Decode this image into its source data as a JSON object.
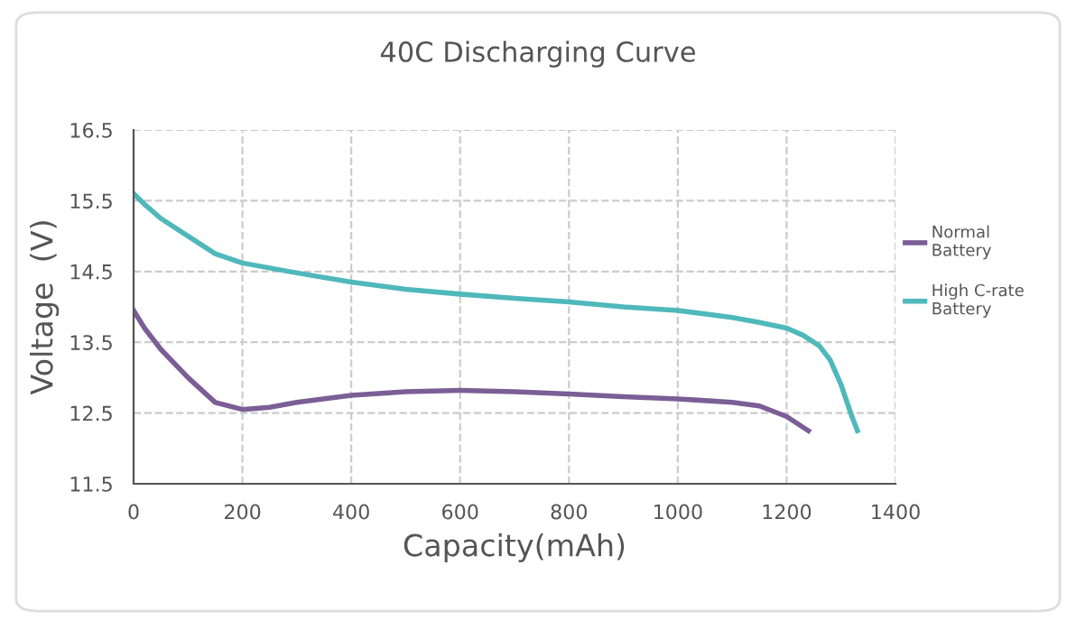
{
  "chart_data": {
    "type": "line",
    "title": "40C Discharging Curve",
    "xlabel": "Capacity(mAh)",
    "ylabel": "Voltage  (V)",
    "xlim": [
      0,
      1400
    ],
    "xticks": [
      0,
      200,
      400,
      600,
      800,
      1000,
      1200,
      1400
    ],
    "ylim": [
      11.5,
      16.5
    ],
    "yticks": [
      11.5,
      12.5,
      13.5,
      14.5,
      15.5,
      16.5
    ],
    "grid": true,
    "legend": "right",
    "line_style": "solid",
    "marker": "none",
    "series": [
      {
        "name": "Normal Battery",
        "color": "#7b5e96",
        "x": [
          0,
          20,
          50,
          100,
          150,
          200,
          250,
          300,
          400,
          500,
          600,
          700,
          800,
          900,
          1000,
          1100,
          1150,
          1200,
          1240
        ],
        "values": [
          13.95,
          13.7,
          13.4,
          13.0,
          12.65,
          12.55,
          12.58,
          12.65,
          12.75,
          12.8,
          12.82,
          12.8,
          12.77,
          12.73,
          12.7,
          12.65,
          12.6,
          12.45,
          12.25
        ]
      },
      {
        "name": "High C-rate Battery",
        "color": "#4fb8bb",
        "x": [
          0,
          20,
          50,
          100,
          150,
          200,
          300,
          400,
          500,
          600,
          700,
          800,
          900,
          1000,
          1100,
          1150,
          1200,
          1230,
          1260,
          1280,
          1300,
          1320,
          1330
        ],
        "values": [
          15.6,
          15.45,
          15.25,
          15.0,
          14.75,
          14.62,
          14.48,
          14.35,
          14.25,
          14.18,
          14.12,
          14.07,
          14.0,
          13.95,
          13.85,
          13.78,
          13.7,
          13.6,
          13.45,
          13.25,
          12.9,
          12.45,
          12.25
        ]
      }
    ]
  }
}
